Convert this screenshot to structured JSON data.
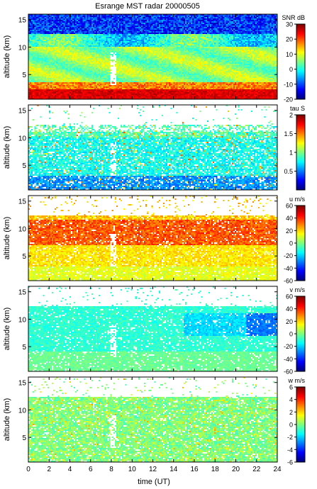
{
  "figure": {
    "title": "Esrange MST radar 20000505",
    "xlabel": "time (UT)"
  },
  "chart_data": [
    {
      "type": "heatmap",
      "title": "Esrange MST radar 20000505",
      "xlabel": "time (UT)",
      "ylabel": "altitude (km)",
      "xlim": [
        0,
        24
      ],
      "ylim": [
        0.5,
        16
      ],
      "x_ticks": [
        0,
        2,
        4,
        6,
        8,
        10,
        12,
        14,
        16,
        18,
        20,
        22,
        24
      ],
      "y_ticks": [
        5,
        10,
        15
      ],
      "colorbar": {
        "label": "SNR dB",
        "range": [
          -20,
          30
        ],
        "ticks": [
          30,
          20,
          10,
          0,
          -10,
          -20
        ]
      },
      "data_gap_x": [
        7.9,
        8.4
      ]
    },
    {
      "type": "heatmap",
      "xlabel": "time (UT)",
      "ylabel": "altitude (km)",
      "xlim": [
        0,
        24
      ],
      "ylim": [
        0.5,
        16
      ],
      "x_ticks": [
        0,
        2,
        4,
        6,
        8,
        10,
        12,
        14,
        16,
        18,
        20,
        22,
        24
      ],
      "y_ticks": [
        5,
        10,
        15
      ],
      "colorbar": {
        "label": "tau S",
        "range": [
          0,
          2
        ],
        "ticks": [
          2,
          1.5,
          1,
          0.5
        ]
      },
      "data_gap_x": [
        7.9,
        8.4
      ]
    },
    {
      "type": "heatmap",
      "xlabel": "time (UT)",
      "ylabel": "altitude (km)",
      "xlim": [
        0,
        24
      ],
      "ylim": [
        0.5,
        16
      ],
      "x_ticks": [
        0,
        2,
        4,
        6,
        8,
        10,
        12,
        14,
        16,
        18,
        20,
        22,
        24
      ],
      "y_ticks": [
        5,
        10,
        15
      ],
      "colorbar": {
        "label": "u m/s",
        "range": [
          -60,
          60
        ],
        "ticks": [
          60,
          40,
          20,
          0,
          -20,
          -40,
          -60
        ]
      },
      "data_gap_x": [
        7.9,
        8.4
      ]
    },
    {
      "type": "heatmap",
      "xlabel": "time (UT)",
      "ylabel": "altitude (km)",
      "xlim": [
        0,
        24
      ],
      "ylim": [
        0.5,
        16
      ],
      "x_ticks": [
        0,
        2,
        4,
        6,
        8,
        10,
        12,
        14,
        16,
        18,
        20,
        22,
        24
      ],
      "y_ticks": [
        5,
        10,
        15
      ],
      "colorbar": {
        "label": "v m/s",
        "range": [
          -60,
          60
        ],
        "ticks": [
          60,
          40,
          20,
          0,
          -20,
          -40,
          -60
        ]
      },
      "data_gap_x": [
        7.9,
        8.4
      ]
    },
    {
      "type": "heatmap",
      "xlabel": "time (UT)",
      "ylabel": "altitude (km)",
      "xlim": [
        0,
        24
      ],
      "ylim": [
        0.5,
        16
      ],
      "x_ticks": [
        0,
        2,
        4,
        6,
        8,
        10,
        12,
        14,
        16,
        18,
        20,
        22,
        24
      ],
      "y_ticks": [
        5,
        10,
        15
      ],
      "colorbar": {
        "label": "w m/s",
        "range": [
          -6,
          6
        ],
        "ticks": [
          6,
          4,
          2,
          0,
          -2,
          -4,
          -6
        ]
      },
      "data_gap_x": [
        7.9,
        8.4
      ]
    }
  ]
}
